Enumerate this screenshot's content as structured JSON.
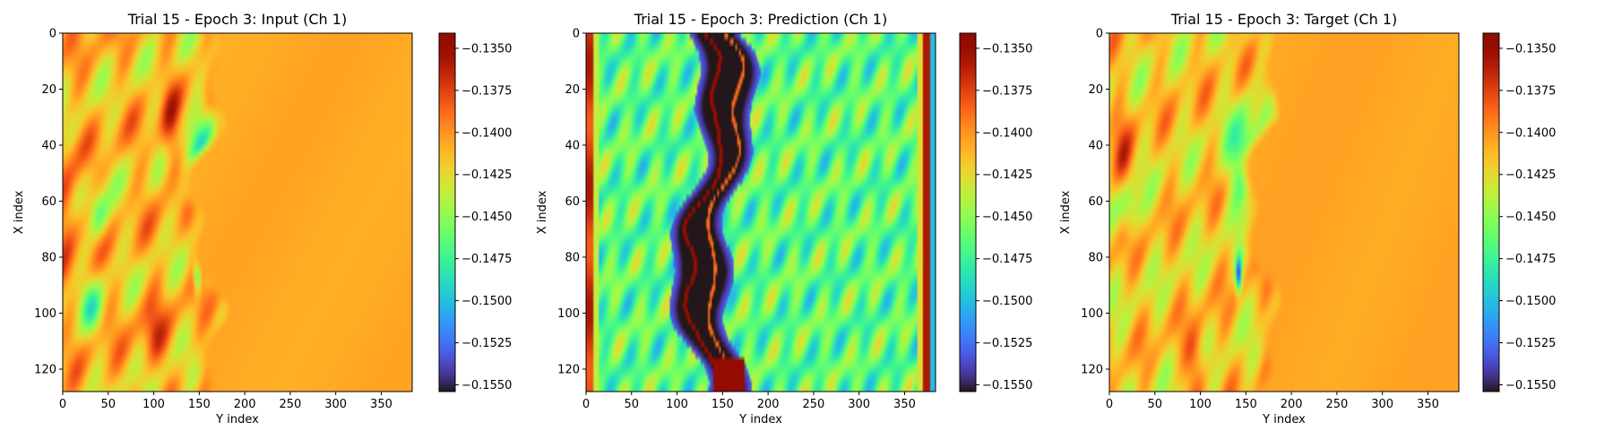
{
  "chart_data": [
    {
      "type": "heatmap",
      "title": "Trial 15 - Epoch 3: Input (Ch 1)",
      "xlabel": "Y index",
      "ylabel": "X index",
      "xlim": [
        0,
        384
      ],
      "ylim": [
        128,
        0
      ],
      "xticks": [
        0,
        50,
        100,
        150,
        200,
        250,
        300,
        350
      ],
      "yticks": [
        0,
        20,
        40,
        60,
        80,
        100,
        120
      ],
      "colormap": "turbo",
      "color_range": [
        -0.1554,
        -0.1341
      ],
      "colorbar_ticks": [
        -0.135,
        -0.1375,
        -0.14,
        -0.1425,
        -0.145,
        -0.1475,
        -0.15,
        -0.1525,
        -0.155
      ],
      "colorbar_tick_labels": [
        "−0.1350",
        "−0.1375",
        "−0.1400",
        "−0.1425",
        "−0.1450",
        "−0.1475",
        "−0.1500",
        "−0.1525",
        "−0.1550"
      ],
      "pattern": "input"
    },
    {
      "type": "heatmap",
      "title": "Trial 15 - Epoch 3: Prediction (Ch 1)",
      "xlabel": "Y index",
      "ylabel": "X index",
      "xlim": [
        0,
        384
      ],
      "ylim": [
        128,
        0
      ],
      "xticks": [
        0,
        50,
        100,
        150,
        200,
        250,
        300,
        350
      ],
      "yticks": [
        0,
        20,
        40,
        60,
        80,
        100,
        120
      ],
      "colormap": "turbo",
      "color_range": [
        -0.1554,
        -0.1341
      ],
      "colorbar_ticks": [
        -0.135,
        -0.1375,
        -0.14,
        -0.1425,
        -0.145,
        -0.1475,
        -0.15,
        -0.1525,
        -0.155
      ],
      "colorbar_tick_labels": [
        "−0.1350",
        "−0.1375",
        "−0.1400",
        "−0.1425",
        "−0.1450",
        "−0.1475",
        "−0.1500",
        "−0.1525",
        "−0.1550"
      ],
      "pattern": "prediction"
    },
    {
      "type": "heatmap",
      "title": "Trial 15 - Epoch 3: Target (Ch 1)",
      "xlabel": "Y index",
      "ylabel": "X index",
      "xlim": [
        0,
        384
      ],
      "ylim": [
        128,
        0
      ],
      "xticks": [
        0,
        50,
        100,
        150,
        200,
        250,
        300,
        350
      ],
      "yticks": [
        0,
        20,
        40,
        60,
        80,
        100,
        120
      ],
      "colormap": "turbo",
      "color_range": [
        -0.1554,
        -0.1341
      ],
      "colorbar_ticks": [
        -0.135,
        -0.1375,
        -0.14,
        -0.1425,
        -0.145,
        -0.1475,
        -0.15,
        -0.1525,
        -0.155
      ],
      "colorbar_tick_labels": [
        "−0.1350",
        "−0.1375",
        "−0.1400",
        "−0.1425",
        "−0.1450",
        "−0.1475",
        "−0.1500",
        "−0.1525",
        "−0.1550"
      ],
      "pattern": "target"
    }
  ]
}
